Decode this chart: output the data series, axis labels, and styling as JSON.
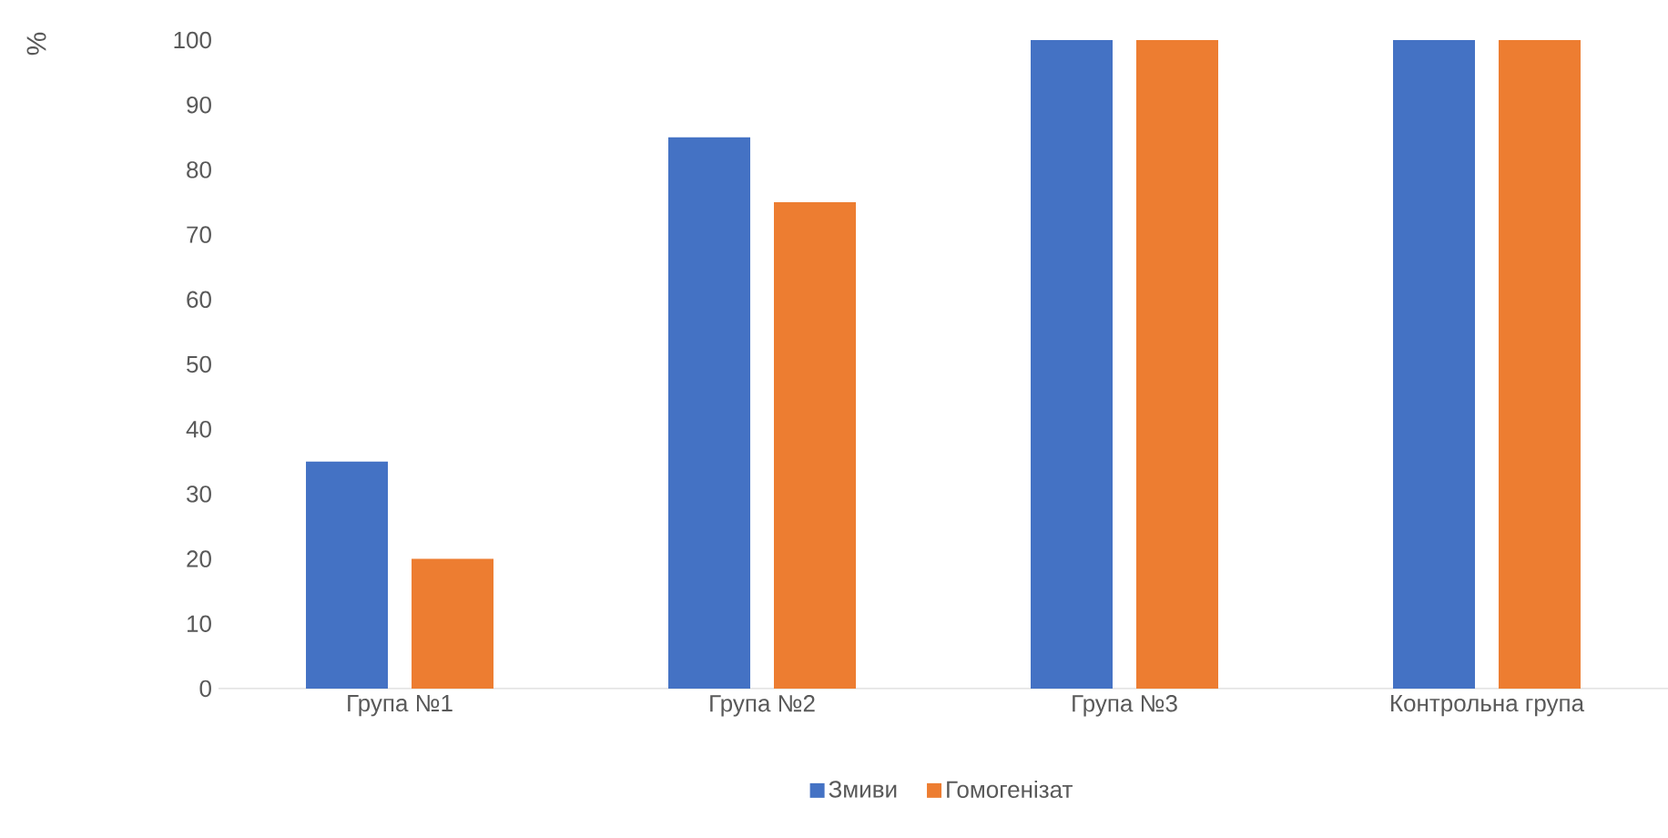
{
  "chart_data": {
    "type": "bar",
    "ylabel": "%",
    "categories": [
      "Група №1",
      "Група №2",
      "Група №3",
      "Контрольна група"
    ],
    "series": [
      {
        "name": "Змиви",
        "color": "#4472c4",
        "values": [
          35,
          85,
          100,
          100
        ]
      },
      {
        "name": "Гомогенізат",
        "color": "#ed7d31",
        "values": [
          20,
          75,
          100,
          100
        ]
      }
    ],
    "ylim": [
      0,
      100
    ],
    "yticks": [
      0,
      10,
      20,
      30,
      40,
      50,
      60,
      70,
      80,
      90,
      100
    ],
    "legend": "bottom"
  }
}
